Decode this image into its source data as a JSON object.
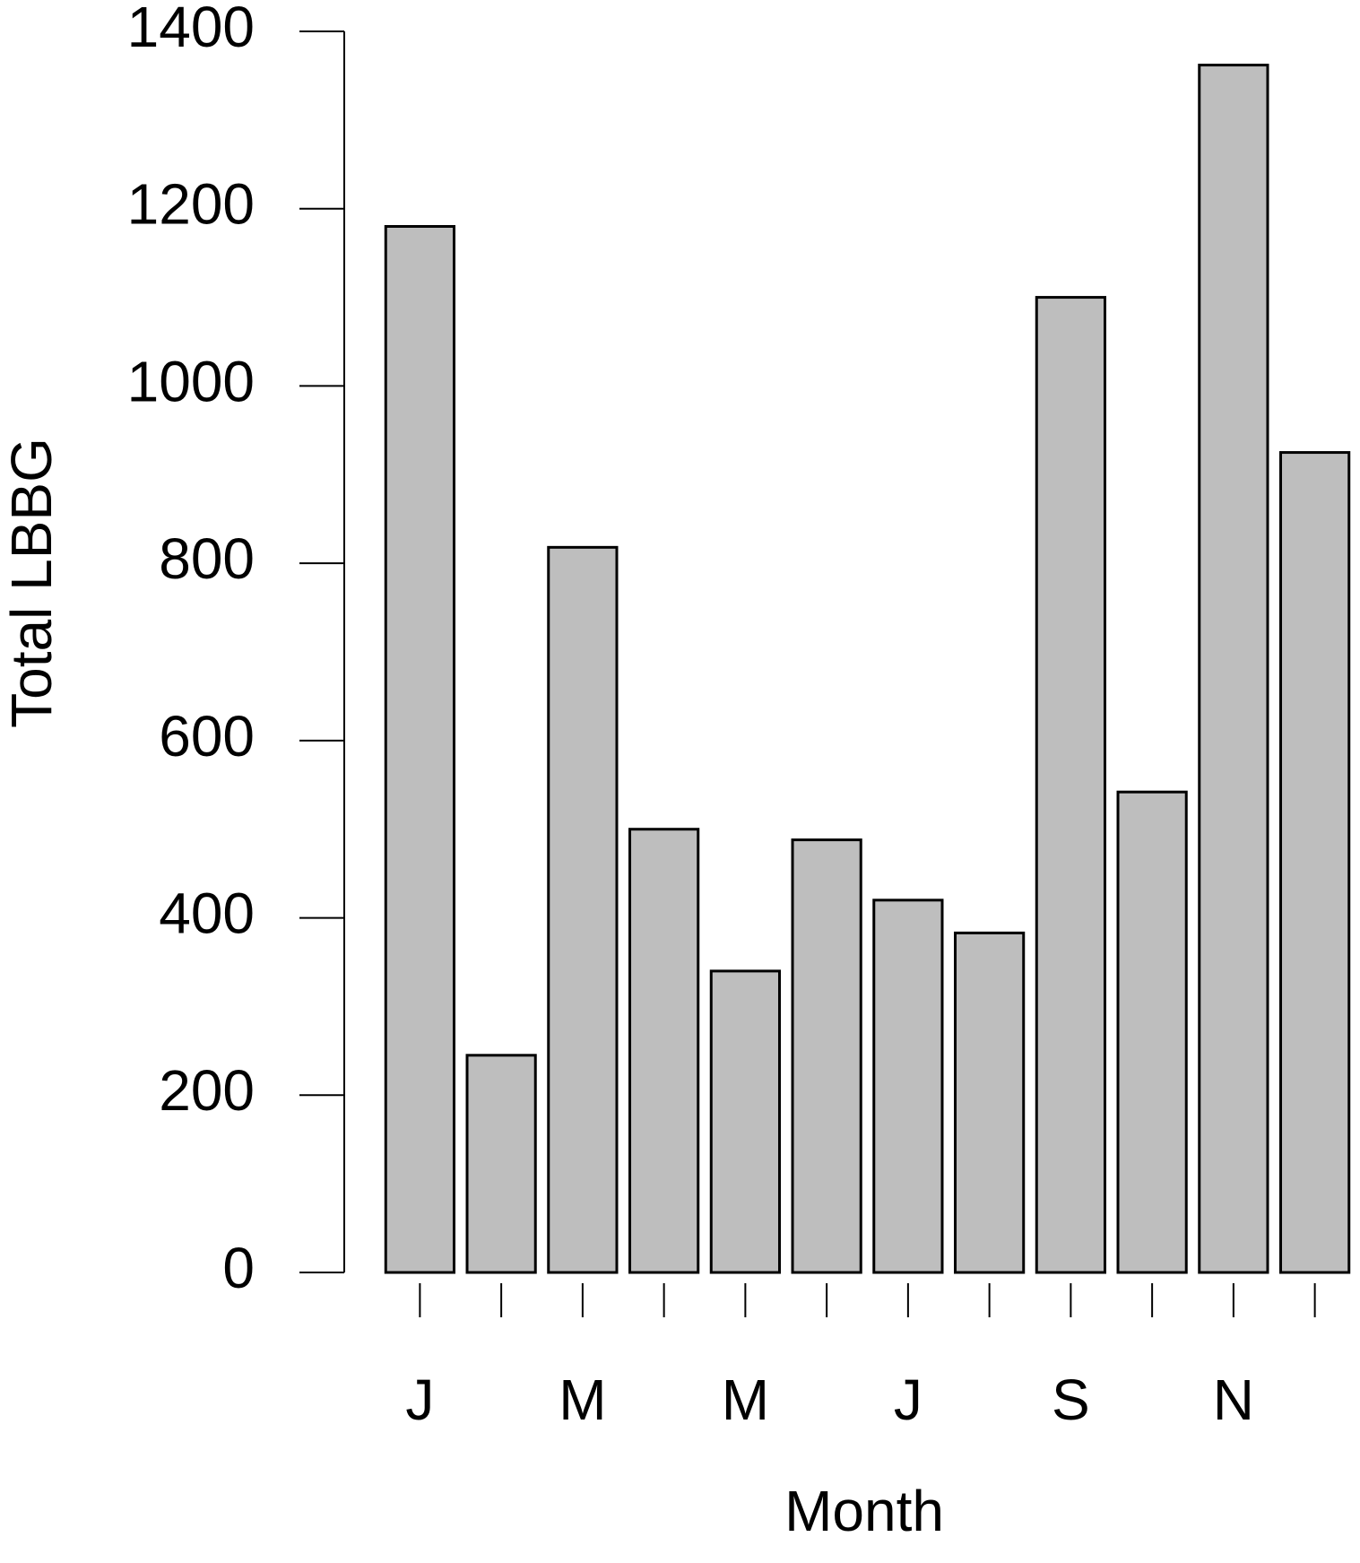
{
  "chart_data": {
    "type": "bar",
    "x_label": "Month",
    "y_label": "Total LBBG",
    "categories": [
      "J",
      null,
      "M",
      null,
      "M",
      null,
      "J",
      null,
      "S",
      null,
      "N",
      null
    ],
    "values": [
      1180,
      245,
      818,
      500,
      340,
      488,
      420,
      383,
      1100,
      542,
      1362,
      925
    ],
    "color": "#bebebe",
    "ylim": [
      0,
      1400
    ],
    "yticks": [
      0,
      200,
      400,
      600,
      800,
      1000,
      1200,
      1400
    ]
  }
}
